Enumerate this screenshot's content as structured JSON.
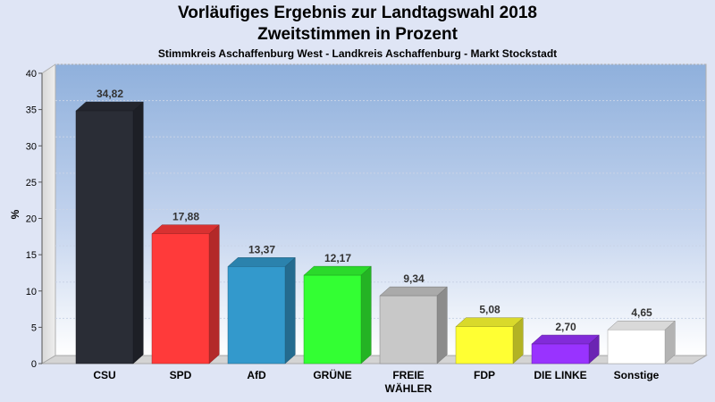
{
  "header": {
    "title_line1": "Vorläufiges Ergebnis zur Landtagswahl 2018",
    "title_line2": "Zweitstimmen in Prozent",
    "subtitle": "Stimmkreis Aschaffenburg West - Landkreis Aschaffenburg - Markt Stockstadt"
  },
  "chart_data": {
    "type": "bar",
    "title": "Vorläufiges Ergebnis zur Landtagswahl 2018 Zweitstimmen in Prozent",
    "subtitle": "Stimmkreis Aschaffenburg West - Landkreis Aschaffenburg - Markt Stockstadt",
    "ylabel": "%",
    "xlabel": "",
    "ylim": [
      0,
      40
    ],
    "yticks": [
      0,
      5,
      10,
      15,
      20,
      25,
      30,
      35,
      40
    ],
    "grid": true,
    "categories": [
      "CSU",
      "SPD",
      "AfD",
      "GRÜNE",
      "FREIE WÄHLER",
      "FDP",
      "DIE LINKE",
      "Sonstige"
    ],
    "category_lines": [
      [
        "CSU"
      ],
      [
        "SPD"
      ],
      [
        "AfD"
      ],
      [
        "GRÜNE"
      ],
      [
        "FREIE",
        "WÄHLER"
      ],
      [
        "FDP"
      ],
      [
        "DIE LINKE"
      ],
      [
        "Sonstige"
      ]
    ],
    "values": [
      34.82,
      17.88,
      13.37,
      12.17,
      9.34,
      5.08,
      2.7,
      4.65
    ],
    "value_labels": [
      "34,82",
      "17,88",
      "13,37",
      "12,17",
      "9,34",
      "5,08",
      "2,70",
      "4,65"
    ],
    "colors": [
      "#2a2d36",
      "#ff3a3a",
      "#3399cc",
      "#33ff33",
      "#c8c8c8",
      "#ffff33",
      "#9933ff",
      "#ffffff"
    ]
  }
}
